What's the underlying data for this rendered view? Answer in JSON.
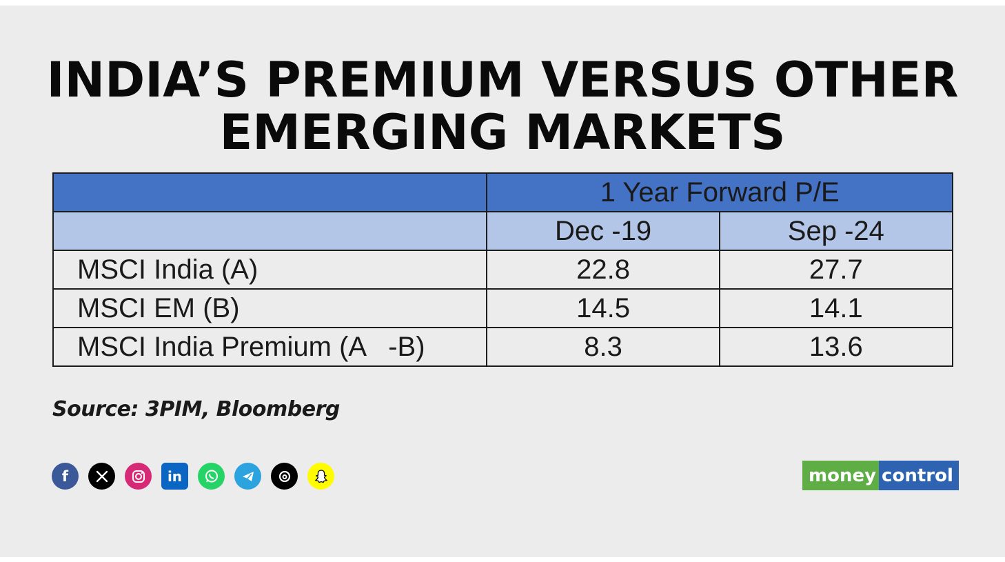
{
  "title_lines": [
    "INDIA’S PREMIUM VERSUS OTHER",
    "EMERGING MARKETS"
  ],
  "chart_data": {
    "type": "table",
    "group_header": "1 Year Forward P/E",
    "columns": [
      "Dec -19",
      "Sep -24"
    ],
    "rows": [
      {
        "label": "MSCI India (A)",
        "values": [
          "22.8",
          "27.7"
        ]
      },
      {
        "label": "MSCI EM (B)",
        "values": [
          "14.5",
          "14.1"
        ]
      },
      {
        "label": "MSCI India Premium (A   -B)",
        "values": [
          "8.3",
          "13.6"
        ]
      }
    ]
  },
  "source": "Source: 3PIM, Bloomberg",
  "social_icons": [
    {
      "name": "facebook-icon",
      "color": "#3b5998"
    },
    {
      "name": "x-icon",
      "color": "#000000"
    },
    {
      "name": "instagram-icon",
      "color": "#d62976"
    },
    {
      "name": "linkedin-icon",
      "color": "#0a66c2"
    },
    {
      "name": "whatsapp-icon",
      "color": "#25d366"
    },
    {
      "name": "telegram-icon",
      "color": "#2aa3df"
    },
    {
      "name": "threads-icon",
      "color": "#000000"
    },
    {
      "name": "snapchat-icon",
      "color": "#fffc00"
    }
  ],
  "logo": {
    "part1": "money",
    "part2": "control"
  },
  "colors": {
    "background": "#ececec",
    "header_dark": "#4472c4",
    "header_light": "#b4c6e7",
    "logo_green": "#5fae45",
    "logo_blue": "#2d63b0"
  }
}
